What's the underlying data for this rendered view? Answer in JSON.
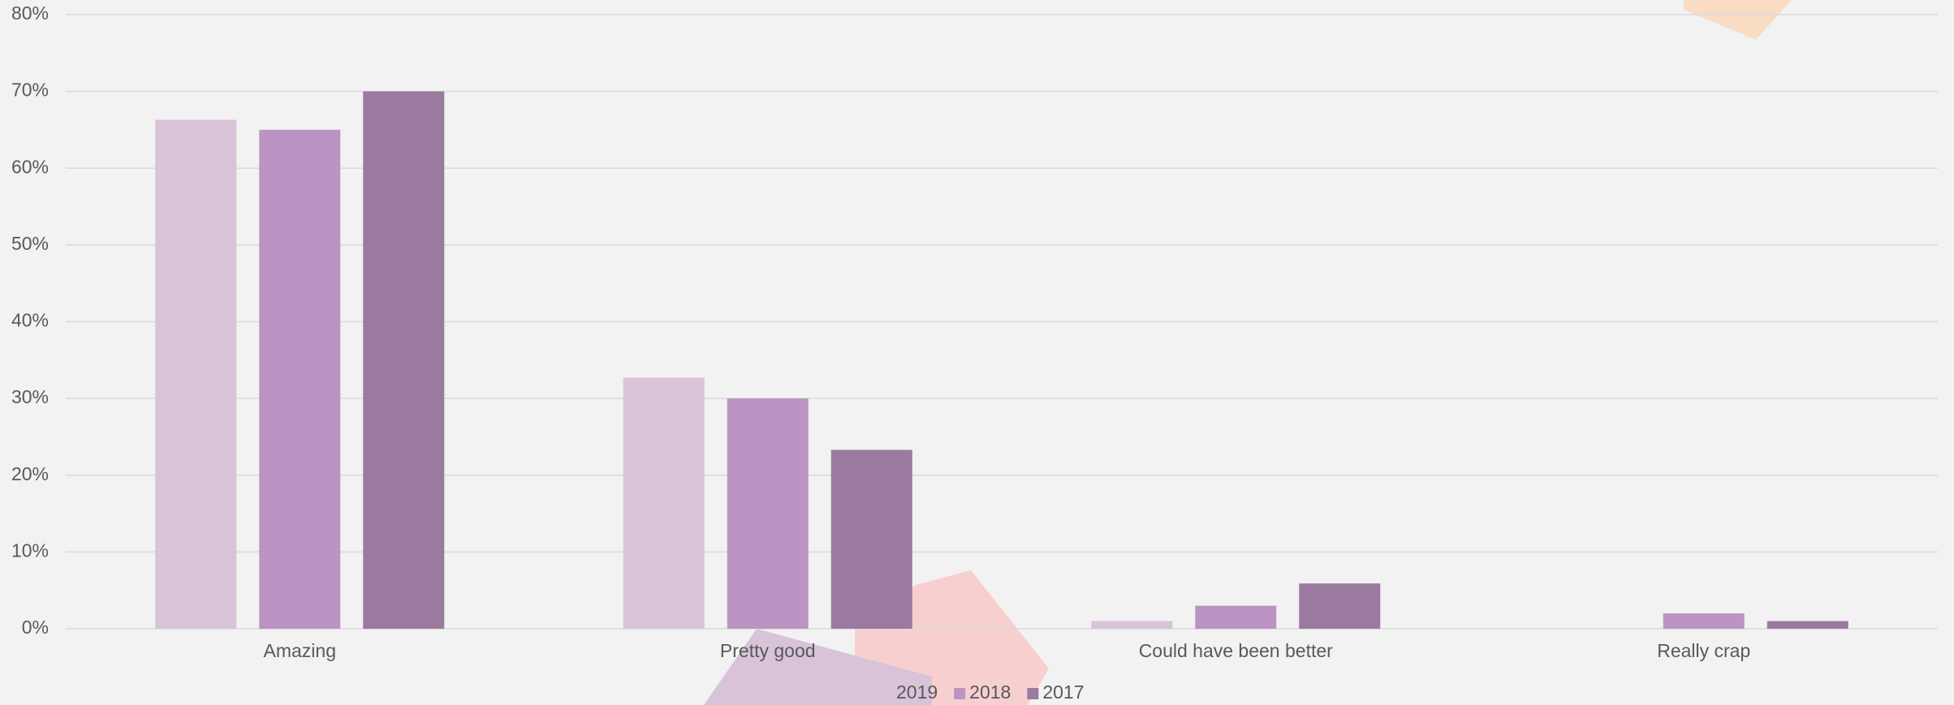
{
  "chart_data": {
    "type": "bar",
    "categories": [
      "Amazing",
      "Pretty good",
      "Could have been better",
      "Really crap"
    ],
    "series": [
      {
        "name": "2019",
        "color": "#d8c3d9",
        "values": [
          66.3,
          32.7,
          1,
          0
        ]
      },
      {
        "name": "2018",
        "color": "#bc94c3",
        "values": [
          65,
          30,
          3,
          2
        ]
      },
      {
        "name": "2017",
        "color": "#9b7a9f",
        "values": [
          70,
          23.3,
          5.9,
          1
        ]
      }
    ],
    "ylim": [
      0,
      80
    ],
    "yticks": [
      {
        "value": 0,
        "label": "0%"
      },
      {
        "value": 10,
        "label": "10%"
      },
      {
        "value": 20,
        "label": "20%"
      },
      {
        "value": 30,
        "label": "30%"
      },
      {
        "value": 40,
        "label": "40%"
      },
      {
        "value": 50,
        "label": "50%"
      },
      {
        "value": 60,
        "label": "60%"
      },
      {
        "value": 70,
        "label": "70%"
      },
      {
        "value": 80,
        "label": "80%"
      }
    ],
    "grid": true,
    "legend": "bottom"
  }
}
